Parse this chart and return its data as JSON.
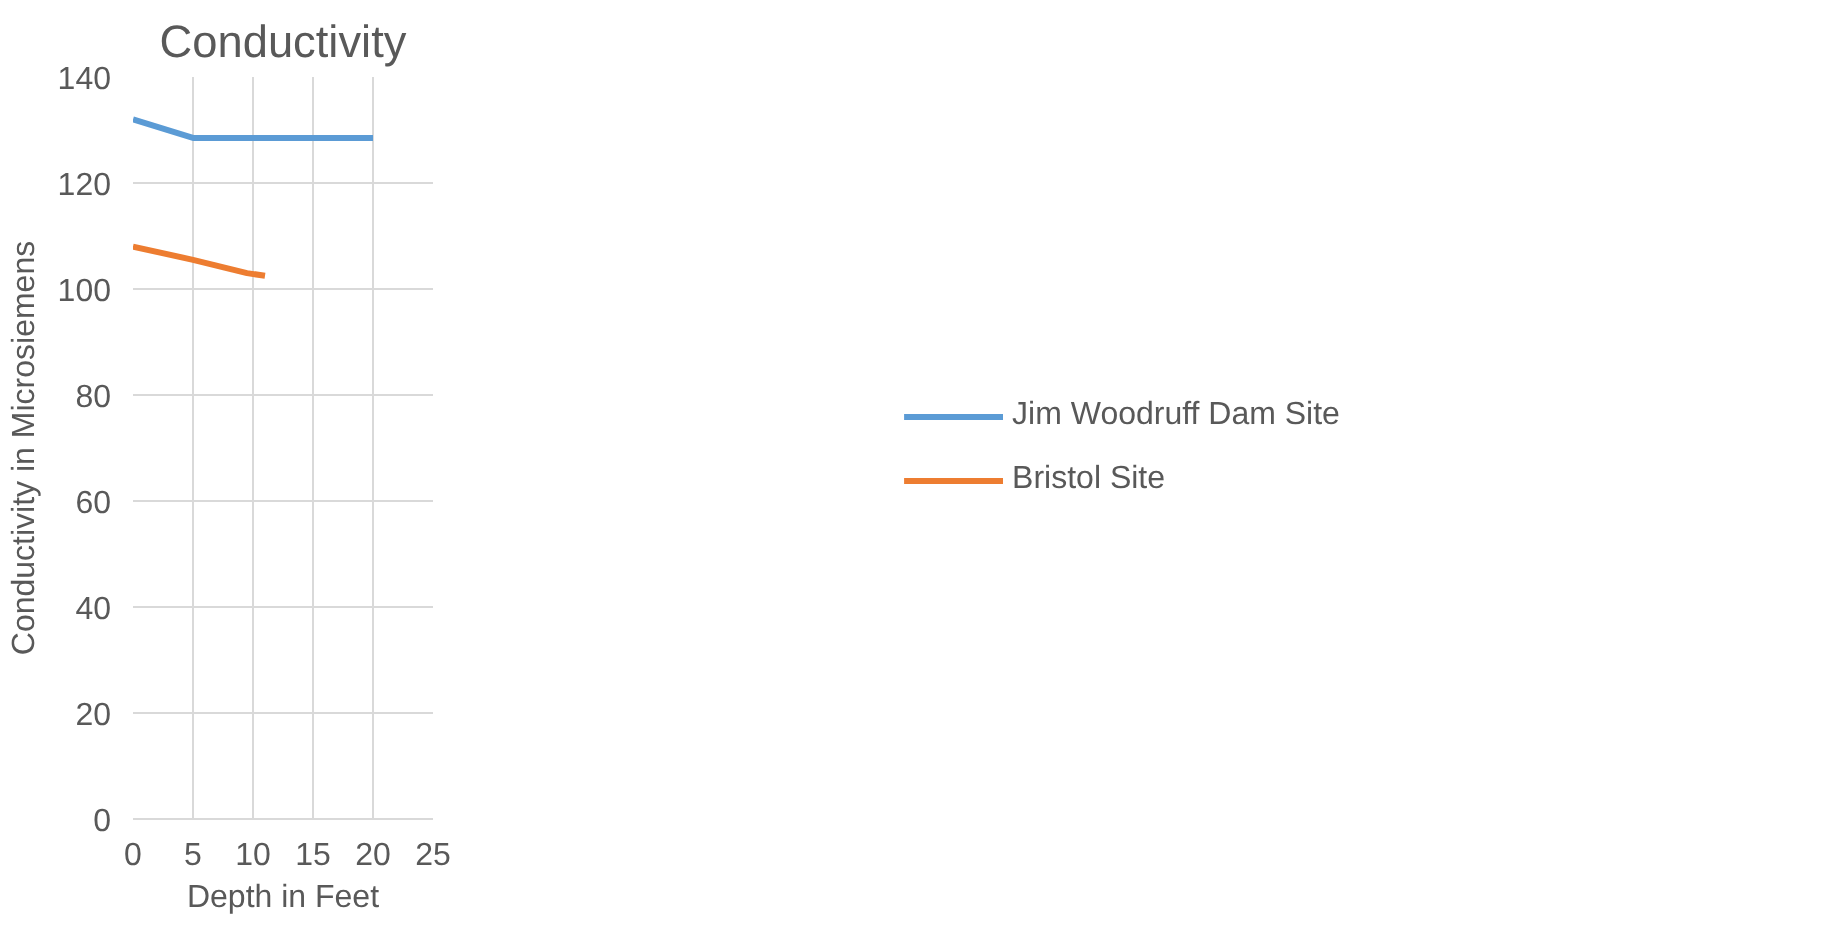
{
  "chart_data": {
    "type": "line",
    "title": "Conductivity",
    "xlabel": "Depth in Feet",
    "ylabel": "Conductivity in Microsiemens",
    "series": [
      {
        "name": "Jim Woodruff Dam Site",
        "color": "#5b9bd5",
        "x": [
          0,
          5,
          10,
          15,
          20
        ],
        "values": [
          132,
          128.5,
          128.5,
          128.5,
          128.5
        ]
      },
      {
        "name": "Bristol Site",
        "color": "#ed7d31",
        "x": [
          0,
          5,
          9.5,
          11
        ],
        "values": [
          108,
          105.5,
          103,
          102.5
        ]
      }
    ],
    "xlim": [
      0,
      25
    ],
    "xticks": [
      0,
      5,
      10,
      15,
      20,
      25
    ],
    "ylim": [
      0,
      140
    ],
    "yticks": [
      0,
      20,
      40,
      60,
      80,
      100,
      120,
      140
    ],
    "grid": true,
    "legend": "right",
    "marker": "none",
    "line_style": "solid"
  }
}
